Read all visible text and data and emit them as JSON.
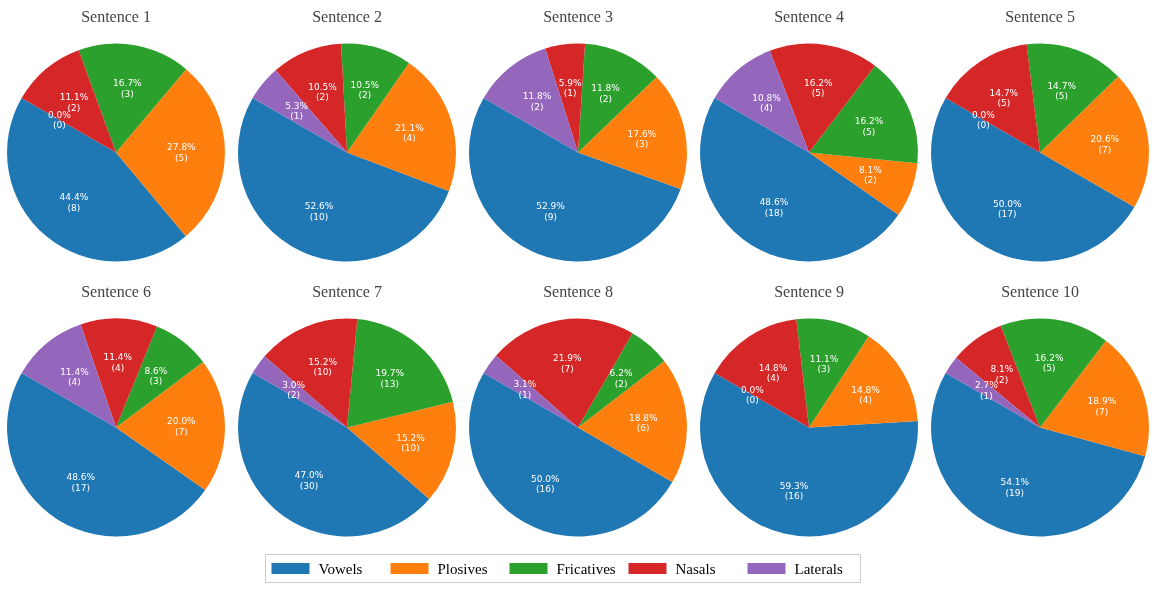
{
  "chart_data": [
    {
      "type": "pie",
      "title": "Sentence 1",
      "categories": [
        "Vowels",
        "Plosives",
        "Fricatives",
        "Nasals",
        "Laterals"
      ],
      "values": [
        44.4,
        27.8,
        16.7,
        11.1,
        0.0
      ],
      "colors": [
        "#1f77b4",
        "#ff7f0e",
        "#2ca02c",
        "#d62728",
        "#9467bd"
      ],
      "value_labels": [
        "44.4%\n(8)",
        "27.8%\n(5)",
        "16.7%\n(3)",
        "11.1%\n(2)",
        "0.0%\n(0)"
      ],
      "legend": "bottom"
    },
    {
      "type": "pie",
      "title": "Sentence 2",
      "categories": [
        null,
        null,
        null,
        null,
        null
      ],
      "values": [
        52.6,
        21.1,
        10.5,
        10.5,
        5.3
      ],
      "colors": [
        "#1f77b4",
        "#ff7f0e",
        "#2ca02c",
        "#d62728",
        "#9467bd"
      ],
      "value_labels": [
        "52.6%\n(10)",
        "21.1%\n(4)",
        "10.5%\n(2)",
        "10.5%\n(2)",
        "5.3%\n(1)"
      ]
    },
    {
      "type": "pie",
      "title": "Sentence 3",
      "categories": [
        null,
        null,
        null,
        null,
        null
      ],
      "values": [
        52.9,
        17.6,
        11.8,
        5.9,
        11.8
      ],
      "colors": [
        "#1f77b4",
        "#ff7f0e",
        "#2ca02c",
        "#d62728",
        "#9467bd"
      ],
      "value_labels": [
        "52.9%\n(9)",
        "17.6%\n(3)",
        "11.8%\n(2)",
        "5.9%\n(1)",
        "11.8%\n(2)"
      ]
    },
    {
      "type": "pie",
      "title": "Sentence 4",
      "categories": [
        null,
        null,
        null,
        null,
        null
      ],
      "values": [
        48.6,
        8.1,
        16.2,
        16.2,
        10.8
      ],
      "colors": [
        "#1f77b4",
        "#ff7f0e",
        "#2ca02c",
        "#d62728",
        "#9467bd"
      ],
      "value_labels": [
        "48.6%\n(18)",
        "8.1%\n(2)",
        "16.2%\n(5)",
        "16.2%\n(5)",
        "10.8%\n(4)"
      ]
    },
    {
      "type": "pie",
      "title": "Sentence 5",
      "categories": [
        null,
        null,
        null,
        null,
        null
      ],
      "values": [
        50.0,
        20.6,
        14.7,
        14.7,
        0.0
      ],
      "colors": [
        "#1f77b4",
        "#ff7f0e",
        "#2ca02c",
        "#d62728",
        "#9467bd"
      ],
      "value_labels": [
        "50.0%\n(17)",
        "20.6%\n(7)",
        "14.7%\n(5)",
        "14.7%\n(5)",
        "0.0%\n(0)"
      ]
    },
    {
      "type": "pie",
      "title": "Sentence 6",
      "categories": [
        null,
        null,
        null,
        null,
        null
      ],
      "values": [
        48.6,
        20.0,
        8.6,
        11.4,
        11.4
      ],
      "colors": [
        "#1f77b4",
        "#ff7f0e",
        "#2ca02c",
        "#d62728",
        "#9467bd"
      ],
      "value_labels": [
        "48.6%\n(17)",
        "20.0%\n(7)",
        "8.6%\n(3)",
        "11.4%\n(4)",
        "11.4%\n(4)"
      ]
    },
    {
      "type": "pie",
      "title": "Sentence 7",
      "categories": [
        null,
        null,
        null,
        null,
        null
      ],
      "values": [
        47.0,
        15.2,
        19.7,
        15.2,
        3.0
      ],
      "colors": [
        "#1f77b4",
        "#ff7f0e",
        "#2ca02c",
        "#d62728",
        "#9467bd"
      ],
      "value_labels": [
        "47.0%\n(30)",
        "15.2%\n(10)",
        "19.7%\n(13)",
        "15.2%\n(10)",
        "3.0%\n(2)"
      ]
    },
    {
      "type": "pie",
      "title": "Sentence 8",
      "categories": [
        null,
        null,
        null,
        null,
        null
      ],
      "values": [
        50.0,
        18.8,
        6.2,
        21.9,
        3.1
      ],
      "colors": [
        "#1f77b4",
        "#ff7f0e",
        "#2ca02c",
        "#d62728",
        "#9467bd"
      ],
      "value_labels": [
        "50.0%\n(16)",
        "18.8%\n(6)",
        "6.2%\n(2)",
        "21.9%\n(7)",
        "3.1%\n(1)"
      ]
    },
    {
      "type": "pie",
      "title": "Sentence 9",
      "categories": [
        null,
        null,
        null,
        null,
        null
      ],
      "values": [
        59.3,
        14.8,
        11.1,
        14.8,
        0.0
      ],
      "colors": [
        "#1f77b4",
        "#ff7f0e",
        "#2ca02c",
        "#d62728",
        "#9467bd"
      ],
      "value_labels": [
        "59.3%\n(16)",
        "14.8%\n(4)",
        "11.1%\n(3)",
        "14.8%\n(4)",
        "0.0%\n(0)"
      ]
    },
    {
      "type": "pie",
      "title": "Sentence 10",
      "categories": [
        null,
        null,
        null,
        null,
        null
      ],
      "values": [
        54.1,
        18.9,
        16.2,
        8.1,
        2.7
      ],
      "colors": [
        "#1f77b4",
        "#ff7f0e",
        "#2ca02c",
        "#d62728",
        "#9467bd"
      ],
      "value_labels": [
        "54.1%\n(19)",
        "18.9%\n(7)",
        "16.2%\n(5)",
        "8.1%\n(2)",
        "2.7%\n(1)"
      ]
    }
  ]
}
